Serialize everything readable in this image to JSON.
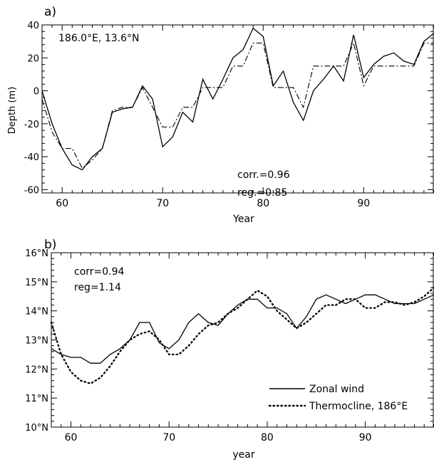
{
  "chart_data": [
    {
      "type": "line",
      "panel_label": "a)",
      "location_label": "186.0°E, 13.6°N",
      "ylabel": "Depth (m)",
      "xlabel": "Year",
      "xlim": [
        58,
        97
      ],
      "ylim": [
        -62,
        40
      ],
      "x_ticks": [
        60,
        70,
        80,
        90
      ],
      "y_ticks": [
        -60,
        -40,
        -20,
        0,
        20,
        40
      ],
      "x_tick_labels": [
        "60",
        "70",
        "80",
        "90"
      ],
      "y_tick_labels": [
        "-60",
        "-40",
        "-20",
        "0",
        "20",
        "40"
      ],
      "annotations": [
        "corr.=0.96",
        "reg.=0.85"
      ],
      "series": [
        {
          "style": "solid",
          "x": [
            58,
            59,
            60,
            61,
            62,
            63,
            64,
            65,
            66,
            67,
            68,
            69,
            70,
            71,
            72,
            73,
            74,
            75,
            76,
            77,
            78,
            79,
            80,
            81,
            82,
            83,
            84,
            85,
            86,
            87,
            88,
            89,
            90,
            91,
            92,
            93,
            94,
            95,
            96,
            97
          ],
          "y": [
            0,
            -20,
            -35,
            -45,
            -48,
            -40,
            -35,
            -13,
            -11,
            -10,
            3,
            -5,
            -34,
            -28,
            -13,
            -19,
            7,
            -5,
            7,
            20,
            25,
            38,
            33,
            3,
            12,
            -7,
            -18,
            0,
            7,
            15,
            6,
            34,
            8,
            16,
            21,
            23,
            18,
            16,
            30,
            35
          ]
        },
        {
          "style": "dashdot",
          "x": [
            58,
            59,
            60,
            61,
            62,
            63,
            64,
            65,
            66,
            67,
            68,
            69,
            70,
            71,
            72,
            73,
            74,
            75,
            76,
            77,
            78,
            79,
            80,
            81,
            82,
            83,
            84,
            85,
            86,
            87,
            88,
            89,
            90,
            91,
            92,
            93,
            94,
            95,
            96,
            97
          ],
          "y": [
            -5,
            -25,
            -35,
            -35,
            -47,
            -42,
            -35,
            -12,
            -10,
            -10,
            2,
            -10,
            -22,
            -22,
            -10,
            -10,
            2,
            2,
            2,
            15,
            15,
            29,
            29,
            2,
            2,
            2,
            -10,
            15,
            15,
            15,
            15,
            29,
            3,
            15,
            15,
            15,
            15,
            15,
            29,
            29
          ]
        }
      ]
    },
    {
      "type": "line",
      "panel_label": "b)",
      "xlabel": "year",
      "xlim": [
        58,
        97
      ],
      "ylim": [
        10,
        16
      ],
      "x_ticks": [
        60,
        70,
        80,
        90
      ],
      "y_ticks": [
        10,
        11,
        12,
        13,
        14,
        15,
        16
      ],
      "x_tick_labels": [
        "60",
        "70",
        "80",
        "90"
      ],
      "y_tick_labels": [
        "10°N",
        "11°N",
        "12°N",
        "13°N",
        "14°N",
        "15°N",
        "16°N"
      ],
      "annotations": [
        "corr=0.94",
        "reg=1.14"
      ],
      "legend": {
        "position": "right-middle",
        "entries": [
          {
            "label": "Zonal wind",
            "style": "solid"
          },
          {
            "label": "Thermocline, 186°E",
            "style": "dotted"
          }
        ]
      },
      "series": [
        {
          "name": "Zonal wind",
          "style": "solid",
          "x": [
            58,
            59,
            60,
            61,
            62,
            63,
            64,
            65,
            66,
            67,
            68,
            69,
            70,
            71,
            72,
            73,
            74,
            75,
            76,
            77,
            78,
            79,
            80,
            81,
            82,
            83,
            84,
            85,
            86,
            87,
            88,
            89,
            90,
            91,
            92,
            93,
            94,
            95,
            96,
            97
          ],
          "y": [
            12.7,
            12.5,
            12.4,
            12.4,
            12.2,
            12.2,
            12.5,
            12.7,
            13.0,
            13.6,
            13.6,
            12.9,
            12.7,
            13.0,
            13.6,
            13.9,
            13.6,
            13.5,
            13.9,
            14.2,
            14.4,
            14.4,
            14.1,
            14.1,
            13.9,
            13.4,
            13.8,
            14.4,
            14.55,
            14.4,
            14.25,
            14.4,
            14.55,
            14.55,
            14.4,
            14.25,
            14.25,
            14.25,
            14.4,
            14.55
          ]
        },
        {
          "name": "Thermocline, 186°E",
          "style": "dotted",
          "x": [
            58,
            59,
            60,
            61,
            62,
            63,
            64,
            65,
            66,
            67,
            68,
            69,
            70,
            71,
            72,
            73,
            74,
            75,
            76,
            77,
            78,
            79,
            80,
            81,
            82,
            83,
            84,
            85,
            86,
            87,
            88,
            89,
            90,
            91,
            92,
            93,
            94,
            95,
            96,
            97
          ],
          "y": [
            13.6,
            12.5,
            11.9,
            11.6,
            11.5,
            11.7,
            12.1,
            12.6,
            13.0,
            13.2,
            13.3,
            13.0,
            12.5,
            12.5,
            12.8,
            13.2,
            13.5,
            13.6,
            13.9,
            14.1,
            14.4,
            14.7,
            14.5,
            14.0,
            13.7,
            13.4,
            13.6,
            13.9,
            14.2,
            14.2,
            14.4,
            14.4,
            14.1,
            14.1,
            14.3,
            14.3,
            14.2,
            14.3,
            14.5,
            14.8
          ]
        }
      ]
    }
  ]
}
